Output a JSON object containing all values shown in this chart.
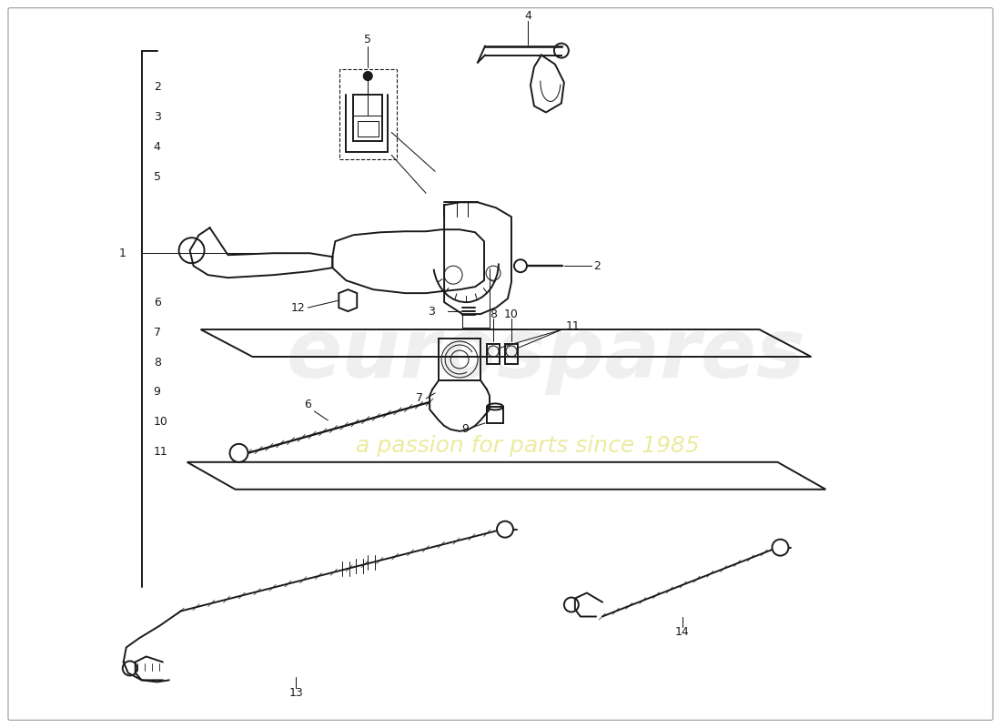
{
  "bg_color": "#ffffff",
  "lc": "#1a1a1a",
  "lw_main": 1.4,
  "lw_thin": 0.75,
  "lw_thick": 2.0,
  "watermark1": "eurospares",
  "watermark2": "a passion for parts since 1985",
  "wm1_color": "#c8c8c8",
  "wm2_color": "#d8d840",
  "figsize": [
    11.0,
    8.0
  ],
  "dpi": 100
}
